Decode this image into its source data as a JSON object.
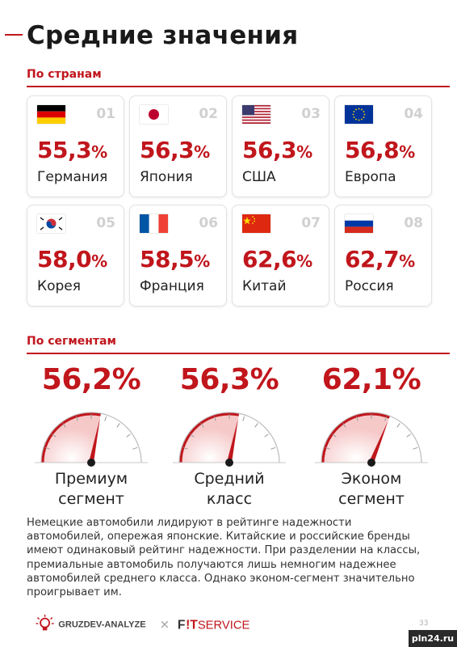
{
  "title": "Средние значения",
  "section_countries": "По странам",
  "section_segments": "По сегментам",
  "countries": [
    {
      "num": "01",
      "value": "55,3",
      "unit": "%",
      "name": "Германия",
      "flag": "germany-flag"
    },
    {
      "num": "02",
      "value": "56,3",
      "unit": "%",
      "name": "Япония",
      "flag": "japan-flag"
    },
    {
      "num": "03",
      "value": "56,3",
      "unit": "%",
      "name": "США",
      "flag": "usa-flag"
    },
    {
      "num": "04",
      "value": "56,8",
      "unit": "%",
      "name": "Европа",
      "flag": "eu-flag"
    },
    {
      "num": "05",
      "value": "58,0",
      "unit": "%",
      "name": "Корея",
      "flag": "korea-flag"
    },
    {
      "num": "06",
      "value": "58,5",
      "unit": "%",
      "name": "Франция",
      "flag": "france-flag"
    },
    {
      "num": "07",
      "value": "62,6",
      "unit": "%",
      "name": "Китай",
      "flag": "china-flag"
    },
    {
      "num": "08",
      "value": "62,7",
      "unit": "%",
      "name": "Россия",
      "flag": "russia-flag"
    }
  ],
  "segments": [
    {
      "value": "56,2",
      "unit": "%",
      "label_line1": "Премиум",
      "label_line2": "сегмент",
      "gauge_level": 0.562
    },
    {
      "value": "56,3",
      "unit": "%",
      "label_line1": "Средний",
      "label_line2": "класс",
      "gauge_level": 0.563
    },
    {
      "value": "62,1",
      "unit": "%",
      "label_line1": "Эконом",
      "label_line2": "сегмент",
      "gauge_level": 0.621
    }
  ],
  "paragraph": "Немецкие автомобили лидируют в рейтинге надежности автомобилей, опережая японские. Китайские и российские бренды имеют одинаковый рейтинг надежности. При разделении на классы, премиальные автомобиль получаются лишь немногим надежнее автомобилей среднего класса. Однако эконом-сегмент значительно проигрывает им.",
  "footer": {
    "brand1": "GRUZDEV-ANALYZE",
    "separator": "✕",
    "brand2_prefix": "F",
    "brand2_mid": "!T",
    "brand2_suffix": "SERVICE",
    "page_number": "33"
  },
  "watermark": "pln24.ru",
  "colors": {
    "accent": "#c0161c",
    "gauge_fill": "#fbe3e3",
    "needle": "#c0161c"
  }
}
